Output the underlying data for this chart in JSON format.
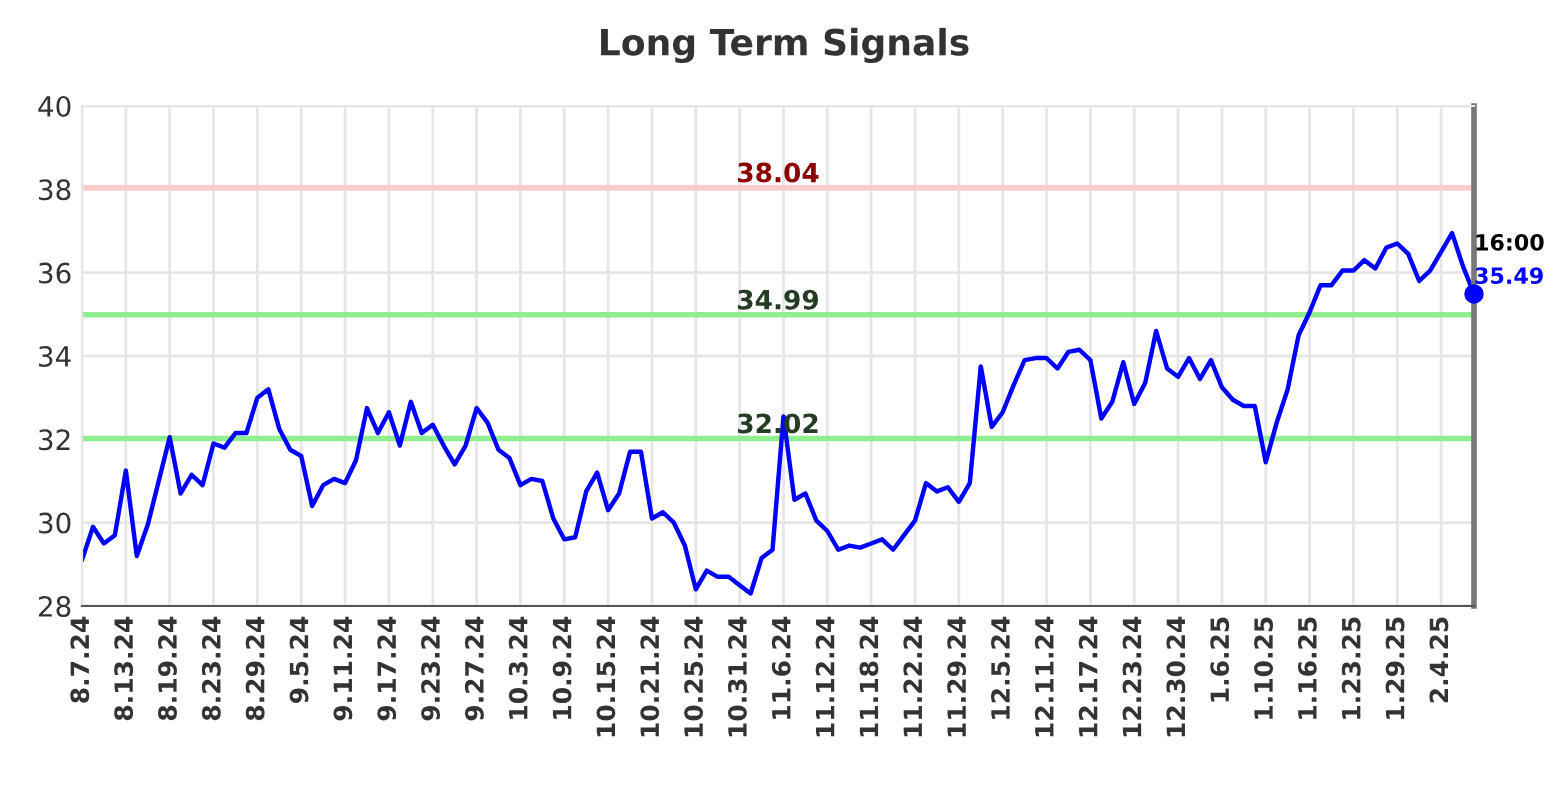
{
  "chart_data": {
    "type": "line",
    "title": "Long Term Signals",
    "categories": [
      "8.7.24",
      null,
      null,
      null,
      "8.13.24",
      null,
      null,
      null,
      "8.19.24",
      null,
      null,
      null,
      "8.23.24",
      null,
      null,
      null,
      "8.29.24",
      null,
      null,
      null,
      "9.5.24",
      null,
      null,
      null,
      "9.11.24",
      null,
      null,
      null,
      "9.17.24",
      null,
      null,
      null,
      "9.23.24",
      null,
      null,
      null,
      "9.27.24",
      null,
      null,
      null,
      "10.3.24",
      null,
      null,
      null,
      "10.9.24",
      null,
      null,
      null,
      "10.15.24",
      null,
      null,
      null,
      "10.21.24",
      null,
      null,
      null,
      "10.25.24",
      null,
      null,
      null,
      "10.31.24",
      null,
      null,
      null,
      "11.6.24",
      null,
      null,
      null,
      "11.12.24",
      null,
      null,
      null,
      "11.18.24",
      null,
      null,
      null,
      "11.22.24",
      null,
      null,
      null,
      "11.29.24",
      null,
      null,
      null,
      "12.5.24",
      null,
      null,
      null,
      "12.11.24",
      null,
      null,
      null,
      "12.17.24",
      null,
      null,
      null,
      "12.23.24",
      null,
      null,
      null,
      "12.30.24",
      null,
      null,
      null,
      "1.6.25",
      null,
      null,
      null,
      "1.10.25",
      null,
      null,
      null,
      "1.16.25",
      null,
      null,
      null,
      "1.23.25",
      null,
      null,
      null,
      "1.29.25",
      null,
      null,
      null,
      "2.4.25",
      null,
      null,
      null
    ],
    "series": [
      {
        "color": "#0000ff",
        "values": [
          29.1,
          29.9,
          29.5,
          29.7,
          31.25,
          29.2,
          29.95,
          31.0,
          32.05,
          30.7,
          31.15,
          30.9,
          31.9,
          31.8,
          32.15,
          32.15,
          33.0,
          33.2,
          32.25,
          31.75,
          31.6,
          30.4,
          30.9,
          31.05,
          30.95,
          31.5,
          32.75,
          32.15,
          32.65,
          31.85,
          32.9,
          32.15,
          32.35,
          31.85,
          31.4,
          31.85,
          32.75,
          32.4,
          31.75,
          31.55,
          30.9,
          31.05,
          31.0,
          30.1,
          29.6,
          29.65,
          30.75,
          31.2,
          30.3,
          30.7,
          31.7,
          31.7,
          30.1,
          30.25,
          30.0,
          29.45,
          28.4,
          28.85,
          28.7,
          28.7,
          28.5,
          28.3,
          29.15,
          29.35,
          32.55,
          30.55,
          30.7,
          30.05,
          29.8,
          29.35,
          29.45,
          29.4,
          29.5,
          29.6,
          29.35,
          29.7,
          30.05,
          30.95,
          30.75,
          30.85,
          30.5,
          30.95,
          33.75,
          32.3,
          32.65,
          33.3,
          33.9,
          33.95,
          33.95,
          33.7,
          34.1,
          34.15,
          33.9,
          32.5,
          32.9,
          33.85,
          32.85,
          33.35,
          34.6,
          33.7,
          33.5,
          33.95,
          33.45,
          33.9,
          33.25,
          32.95,
          32.8,
          32.8,
          31.45,
          32.4,
          33.2,
          34.5,
          35.05,
          35.7,
          35.7,
          36.05,
          36.05,
          36.3,
          36.1,
          36.6,
          36.7,
          36.45,
          35.8,
          36.05,
          36.5,
          36.95,
          36.15,
          35.49
        ]
      }
    ],
    "ylim": [
      28,
      40
    ],
    "yticks": [
      28,
      30,
      32,
      34,
      36,
      38,
      40
    ],
    "ref_lines": [
      {
        "axis": "y",
        "value": 38.04,
        "label": "38.04",
        "color": "#ffcccc"
      },
      {
        "axis": "y",
        "value": 34.99,
        "label": "34.99",
        "color": "#90ee90"
      },
      {
        "axis": "y",
        "value": 32.02,
        "label": "32.02",
        "color": "#90ee90"
      }
    ],
    "annotations": [
      "16:00",
      "35.49"
    ],
    "grid": true,
    "marker": "none",
    "line_style": "solid",
    "legend": false
  }
}
